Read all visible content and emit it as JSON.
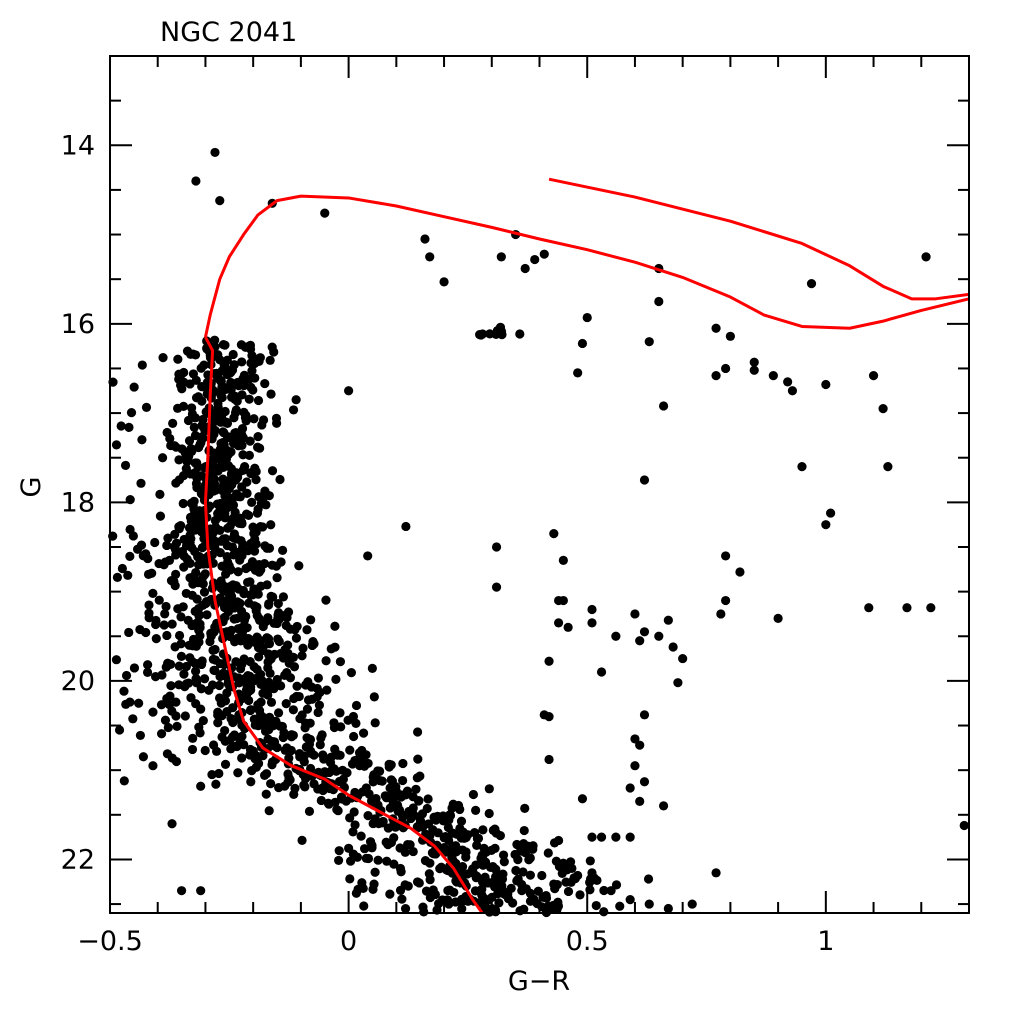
{
  "chart_data": {
    "type": "scatter",
    "title": "NGC 2041",
    "xlabel": "G−R",
    "ylabel": "G",
    "xlim": [
      -0.5,
      1.3
    ],
    "ylim": [
      22.6,
      13.0
    ],
    "y_inverted": true,
    "grid": false,
    "legend": "none",
    "x_ticks": [
      {
        "value": -0.5,
        "label": "−0.5"
      },
      {
        "value": 0,
        "label": "0"
      },
      {
        "value": 0.5,
        "label": "0.5"
      },
      {
        "value": 1,
        "label": "1"
      }
    ],
    "y_ticks": [
      {
        "value": 14,
        "label": "14"
      },
      {
        "value": 16,
        "label": "16"
      },
      {
        "value": 18,
        "label": "18"
      },
      {
        "value": 20,
        "label": "20"
      },
      {
        "value": 22,
        "label": "22"
      }
    ],
    "point_color": "#000000",
    "isochrone_color": "#ff0000",
    "isolated_points": [
      [
        -0.28,
        14.08
      ],
      [
        -0.32,
        14.4
      ],
      [
        -0.27,
        14.62
      ],
      [
        -0.16,
        14.65
      ],
      [
        -0.05,
        14.76
      ],
      [
        0.16,
        15.05
      ],
      [
        0.17,
        15.25
      ],
      [
        0.2,
        15.53
      ],
      [
        0.32,
        15.25
      ],
      [
        0.35,
        15.0
      ],
      [
        0.37,
        15.38
      ],
      [
        0.39,
        15.28
      ],
      [
        0.41,
        15.22
      ],
      [
        0.65,
        15.38
      ],
      [
        0.65,
        15.75
      ],
      [
        0.5,
        15.93
      ],
      [
        0.49,
        16.22
      ],
      [
        0.48,
        16.55
      ],
      [
        0.63,
        16.2
      ],
      [
        0.66,
        16.92
      ],
      [
        0.77,
        16.05
      ],
      [
        0.8,
        16.14
      ],
      [
        0.77,
        16.58
      ],
      [
        0.79,
        16.5
      ],
      [
        0.85,
        16.43
      ],
      [
        0.85,
        16.52
      ],
      [
        0.89,
        16.58
      ],
      [
        0.92,
        16.65
      ],
      [
        0.93,
        16.75
      ],
      [
        1.0,
        16.68
      ],
      [
        1.1,
        16.58
      ],
      [
        1.12,
        16.95
      ],
      [
        1.13,
        17.6
      ],
      [
        0.97,
        15.55
      ],
      [
        1.21,
        15.25
      ],
      [
        0.95,
        17.6
      ],
      [
        1.0,
        18.25
      ],
      [
        1.01,
        18.12
      ],
      [
        0.62,
        17.75
      ],
      [
        -0.11,
        16.85
      ],
      [
        0.0,
        16.75
      ],
      [
        0.12,
        18.27
      ],
      [
        0.04,
        18.6
      ],
      [
        0.43,
        18.35
      ],
      [
        0.45,
        18.65
      ],
      [
        0.31,
        18.5
      ],
      [
        0.31,
        18.95
      ],
      [
        0.44,
        19.1
      ],
      [
        0.45,
        19.1
      ],
      [
        0.44,
        19.35
      ],
      [
        0.46,
        19.4
      ],
      [
        0.51,
        19.2
      ],
      [
        0.51,
        19.35
      ],
      [
        0.6,
        19.25
      ],
      [
        0.62,
        19.45
      ],
      [
        0.61,
        19.55
      ],
      [
        0.65,
        19.5
      ],
      [
        0.68,
        19.62
      ],
      [
        0.67,
        19.32
      ],
      [
        0.69,
        20.02
      ],
      [
        0.7,
        19.75
      ],
      [
        0.53,
        19.9
      ],
      [
        0.56,
        19.5
      ],
      [
        0.79,
        18.6
      ],
      [
        0.82,
        18.78
      ],
      [
        0.79,
        19.1
      ],
      [
        0.78,
        19.25
      ],
      [
        0.9,
        19.3
      ],
      [
        1.09,
        19.18
      ],
      [
        1.17,
        19.18
      ],
      [
        1.22,
        19.18
      ],
      [
        0.42,
        19.78
      ],
      [
        0.42,
        20.4
      ],
      [
        0.41,
        20.38
      ],
      [
        0.62,
        20.38
      ],
      [
        0.6,
        20.65
      ],
      [
        0.61,
        20.72
      ],
      [
        0.6,
        20.95
      ],
      [
        0.62,
        21.13
      ],
      [
        0.66,
        21.4
      ],
      [
        0.59,
        21.2
      ],
      [
        0.61,
        21.35
      ],
      [
        0.49,
        21.32
      ],
      [
        0.51,
        21.75
      ],
      [
        0.53,
        21.75
      ],
      [
        0.56,
        21.75
      ],
      [
        0.59,
        21.75
      ],
      [
        0.42,
        20.88
      ],
      [
        0.48,
        22.18
      ],
      [
        0.51,
        22.15
      ],
      [
        0.55,
        22.35
      ],
      [
        0.59,
        22.45
      ],
      [
        0.63,
        22.5
      ],
      [
        0.67,
        22.55
      ],
      [
        0.77,
        22.15
      ],
      [
        0.72,
        22.5
      ],
      [
        1.29,
        21.62
      ],
      [
        -0.48,
        20.55
      ],
      [
        -0.47,
        21.12
      ],
      [
        -0.43,
        20.85
      ],
      [
        -0.41,
        20.95
      ],
      [
        -0.37,
        21.6
      ],
      [
        -0.31,
        21.18
      ],
      [
        -0.35,
        22.35
      ],
      [
        -0.31,
        22.35
      ],
      [
        -0.44,
        20.25
      ],
      [
        -0.41,
        20.35
      ]
    ],
    "cluster_points_note": "Dense main-sequence cloud rendered from seeded distribution around the isochrone (G 16.0–22.6)",
    "isochrone": [
      [
        -0.3,
        16.15
      ],
      [
        -0.29,
        15.9
      ],
      [
        -0.28,
        15.7
      ],
      [
        -0.27,
        15.5
      ],
      [
        -0.25,
        15.25
      ],
      [
        -0.22,
        15.0
      ],
      [
        -0.19,
        14.78
      ],
      [
        -0.15,
        14.62
      ],
      [
        -0.1,
        14.57
      ],
      [
        0.0,
        14.59
      ],
      [
        0.1,
        14.68
      ],
      [
        0.2,
        14.8
      ],
      [
        0.3,
        14.92
      ],
      [
        0.4,
        15.05
      ],
      [
        0.5,
        15.17
      ],
      [
        0.6,
        15.31
      ],
      [
        0.7,
        15.48
      ],
      [
        0.8,
        15.7
      ],
      [
        0.87,
        15.9
      ],
      [
        0.95,
        16.03
      ],
      [
        1.05,
        16.05
      ],
      [
        1.12,
        15.97
      ],
      [
        1.2,
        15.85
      ],
      [
        1.3,
        15.72
      ]
    ],
    "isochrone_lower": [
      [
        -0.3,
        16.15
      ],
      [
        -0.285,
        16.3
      ],
      [
        -0.29,
        16.8
      ],
      [
        -0.295,
        17.5
      ],
      [
        -0.3,
        18.0
      ],
      [
        -0.295,
        18.5
      ],
      [
        -0.28,
        19.1
      ],
      [
        -0.26,
        19.6
      ],
      [
        -0.24,
        20.1
      ],
      [
        -0.22,
        20.45
      ],
      [
        -0.18,
        20.75
      ],
      [
        -0.12,
        20.95
      ],
      [
        -0.05,
        21.1
      ],
      [
        0.0,
        21.28
      ],
      [
        0.07,
        21.48
      ],
      [
        0.13,
        21.65
      ],
      [
        0.18,
        21.85
      ],
      [
        0.22,
        22.1
      ],
      [
        0.26,
        22.45
      ],
      [
        0.28,
        22.6
      ]
    ],
    "isochrone_upper_branch": [
      [
        0.42,
        14.38
      ],
      [
        0.6,
        14.58
      ],
      [
        0.8,
        14.85
      ],
      [
        0.95,
        15.1
      ],
      [
        1.05,
        15.35
      ],
      [
        1.12,
        15.58
      ],
      [
        1.18,
        15.72
      ],
      [
        1.23,
        15.72
      ],
      [
        1.3,
        15.67
      ]
    ]
  }
}
